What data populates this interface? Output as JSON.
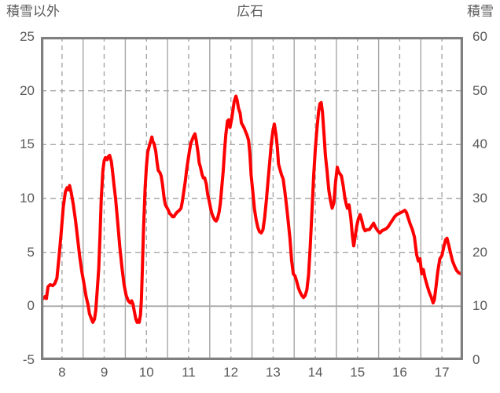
{
  "header": {
    "left_axis_title": "積雪以外",
    "chart_title": "広石",
    "right_axis_title": "積雪"
  },
  "colors": {
    "series_red": "#FF0000",
    "plot_border": "#808080",
    "gridline": "#A6A6A6",
    "text": "#595959",
    "background": "#FFFFFF"
  },
  "chart_data": {
    "type": "line",
    "title": "広石",
    "legend": "none",
    "left_axis": {
      "label": "積雪以外",
      "min": -5,
      "max": 25,
      "ticks": [
        25,
        20,
        15,
        10,
        5,
        0,
        -5
      ]
    },
    "right_axis": {
      "label": "積雪",
      "min": 0,
      "max": 60,
      "ticks": [
        60,
        50,
        40,
        30,
        20,
        10,
        0
      ]
    },
    "x_axis": {
      "min": 7.5,
      "max": 17.5,
      "tick_labels": [
        8,
        9,
        10,
        11,
        12,
        13,
        14,
        15,
        16,
        17
      ]
    },
    "gridlines": {
      "vertical_dashed_at": [
        8,
        9,
        10,
        11,
        12,
        13,
        14,
        15,
        16,
        17
      ],
      "vertical_solid_at": [
        8.5,
        9.5,
        10.5,
        11.5,
        12.5,
        13.5,
        14.5,
        15.5,
        16.5
      ],
      "horizontal_dashed_at_left_values": [
        20,
        15,
        10,
        5
      ],
      "horizontal_solid_at_left_values": [
        0
      ]
    },
    "series": [
      {
        "axis": "left",
        "color": "#FF0000",
        "points": [
          [
            7.5,
            1.0
          ],
          [
            7.55,
            0.7
          ],
          [
            7.6,
            0.9
          ],
          [
            7.63,
            0.7
          ],
          [
            7.67,
            1.8
          ],
          [
            7.72,
            2.0
          ],
          [
            7.78,
            1.9
          ],
          [
            7.83,
            2.1
          ],
          [
            7.88,
            2.6
          ],
          [
            7.93,
            4.6
          ],
          [
            7.98,
            6.8
          ],
          [
            8.03,
            9.2
          ],
          [
            8.08,
            10.6
          ],
          [
            8.12,
            11.0
          ],
          [
            8.15,
            10.8
          ],
          [
            8.18,
            11.2
          ],
          [
            8.22,
            10.5
          ],
          [
            8.27,
            9.4
          ],
          [
            8.32,
            8.0
          ],
          [
            8.37,
            6.3
          ],
          [
            8.42,
            4.6
          ],
          [
            8.47,
            3.2
          ],
          [
            8.52,
            2.1
          ],
          [
            8.57,
            0.9
          ],
          [
            8.62,
            0.1
          ],
          [
            8.65,
            -0.7
          ],
          [
            8.7,
            -1.2
          ],
          [
            8.73,
            -1.5
          ],
          [
            8.77,
            -1.2
          ],
          [
            8.8,
            -0.4
          ],
          [
            8.83,
            1.2
          ],
          [
            8.87,
            3.5
          ],
          [
            8.9,
            6.5
          ],
          [
            8.93,
            10.0
          ],
          [
            8.97,
            12.6
          ],
          [
            9.0,
            13.5
          ],
          [
            9.03,
            13.8
          ],
          [
            9.07,
            13.6
          ],
          [
            9.1,
            13.9
          ],
          [
            9.13,
            14.0
          ],
          [
            9.17,
            13.4
          ],
          [
            9.2,
            12.4
          ],
          [
            9.23,
            11.3
          ],
          [
            9.27,
            10.0
          ],
          [
            9.32,
            7.8
          ],
          [
            9.37,
            5.5
          ],
          [
            9.42,
            3.6
          ],
          [
            9.47,
            2.0
          ],
          [
            9.52,
            1.0
          ],
          [
            9.57,
            0.5
          ],
          [
            9.62,
            0.3
          ],
          [
            9.65,
            0.5
          ],
          [
            9.68,
            0.2
          ],
          [
            9.72,
            -0.6
          ],
          [
            9.75,
            -1.2
          ],
          [
            9.78,
            -1.5
          ],
          [
            9.8,
            -1.3
          ],
          [
            9.83,
            -1.5
          ],
          [
            9.86,
            -0.8
          ],
          [
            9.88,
            0.5
          ],
          [
            9.9,
            3.0
          ],
          [
            9.93,
            7.0
          ],
          [
            9.97,
            11.0
          ],
          [
            10.0,
            13.0
          ],
          [
            10.03,
            14.3
          ],
          [
            10.07,
            14.9
          ],
          [
            10.1,
            15.3
          ],
          [
            10.13,
            15.7
          ],
          [
            10.15,
            15.3
          ],
          [
            10.18,
            15.1
          ],
          [
            10.22,
            14.4
          ],
          [
            10.25,
            13.4
          ],
          [
            10.28,
            12.6
          ],
          [
            10.32,
            12.4
          ],
          [
            10.35,
            12.1
          ],
          [
            10.38,
            11.3
          ],
          [
            10.42,
            10.0
          ],
          [
            10.45,
            9.4
          ],
          [
            10.48,
            9.2
          ],
          [
            10.52,
            8.9
          ],
          [
            10.55,
            8.6
          ],
          [
            10.58,
            8.5
          ],
          [
            10.62,
            8.3
          ],
          [
            10.65,
            8.3
          ],
          [
            10.68,
            8.5
          ],
          [
            10.72,
            8.7
          ],
          [
            10.75,
            8.8
          ],
          [
            10.78,
            8.9
          ],
          [
            10.82,
            9.1
          ],
          [
            10.85,
            9.7
          ],
          [
            10.88,
            10.5
          ],
          [
            10.92,
            11.6
          ],
          [
            10.95,
            12.6
          ],
          [
            10.98,
            13.4
          ],
          [
            11.02,
            14.4
          ],
          [
            11.05,
            15.1
          ],
          [
            11.08,
            15.4
          ],
          [
            11.12,
            15.8
          ],
          [
            11.15,
            16.0
          ],
          [
            11.18,
            15.4
          ],
          [
            11.22,
            14.3
          ],
          [
            11.25,
            13.3
          ],
          [
            11.28,
            12.9
          ],
          [
            11.32,
            12.2
          ],
          [
            11.35,
            11.9
          ],
          [
            11.38,
            11.9
          ],
          [
            11.42,
            11.3
          ],
          [
            11.45,
            10.4
          ],
          [
            11.48,
            9.9
          ],
          [
            11.52,
            9.1
          ],
          [
            11.55,
            8.6
          ],
          [
            11.58,
            8.3
          ],
          [
            11.62,
            8.0
          ],
          [
            11.65,
            7.9
          ],
          [
            11.68,
            8.1
          ],
          [
            11.72,
            8.7
          ],
          [
            11.75,
            9.5
          ],
          [
            11.78,
            10.8
          ],
          [
            11.82,
            12.6
          ],
          [
            11.85,
            14.4
          ],
          [
            11.88,
            15.9
          ],
          [
            11.92,
            17.2
          ],
          [
            11.95,
            17.3
          ],
          [
            11.98,
            16.6
          ],
          [
            12.02,
            17.4
          ],
          [
            12.05,
            18.2
          ],
          [
            12.08,
            19.0
          ],
          [
            12.12,
            19.5
          ],
          [
            12.15,
            19.1
          ],
          [
            12.18,
            18.4
          ],
          [
            12.22,
            17.9
          ],
          [
            12.25,
            17.0
          ],
          [
            12.28,
            16.8
          ],
          [
            12.32,
            16.5
          ],
          [
            12.35,
            16.2
          ],
          [
            12.38,
            15.9
          ],
          [
            12.42,
            15.4
          ],
          [
            12.45,
            14.2
          ],
          [
            12.48,
            12.2
          ],
          [
            12.52,
            10.6
          ],
          [
            12.56,
            9.0
          ],
          [
            12.6,
            8.0
          ],
          [
            12.64,
            7.3
          ],
          [
            12.68,
            6.9
          ],
          [
            12.72,
            6.8
          ],
          [
            12.76,
            7.1
          ],
          [
            12.8,
            8.2
          ],
          [
            12.84,
            9.8
          ],
          [
            12.88,
            11.6
          ],
          [
            12.92,
            13.4
          ],
          [
            12.96,
            15.2
          ],
          [
            13.0,
            16.4
          ],
          [
            13.03,
            16.9
          ],
          [
            13.07,
            15.9
          ],
          [
            13.1,
            14.8
          ],
          [
            13.13,
            13.2
          ],
          [
            13.17,
            12.6
          ],
          [
            13.2,
            12.2
          ],
          [
            13.24,
            11.8
          ],
          [
            13.28,
            10.6
          ],
          [
            13.32,
            9.3
          ],
          [
            13.36,
            7.8
          ],
          [
            13.4,
            6.3
          ],
          [
            13.44,
            4.2
          ],
          [
            13.48,
            3.0
          ],
          [
            13.52,
            2.8
          ],
          [
            13.56,
            2.3
          ],
          [
            13.6,
            1.7
          ],
          [
            13.64,
            1.3
          ],
          [
            13.68,
            1.0
          ],
          [
            13.72,
            0.8
          ],
          [
            13.76,
            1.0
          ],
          [
            13.8,
            1.5
          ],
          [
            13.84,
            2.9
          ],
          [
            13.88,
            5.5
          ],
          [
            13.92,
            8.8
          ],
          [
            13.96,
            12.0
          ],
          [
            14.0,
            14.6
          ],
          [
            14.04,
            16.5
          ],
          [
            14.08,
            18.1
          ],
          [
            14.11,
            18.8
          ],
          [
            14.14,
            18.9
          ],
          [
            14.17,
            18.0
          ],
          [
            14.21,
            15.8
          ],
          [
            14.24,
            14.0
          ],
          [
            14.28,
            12.5
          ],
          [
            14.32,
            10.8
          ],
          [
            14.36,
            9.8
          ],
          [
            14.4,
            9.1
          ],
          [
            14.44,
            9.6
          ],
          [
            14.48,
            11.5
          ],
          [
            14.52,
            12.9
          ],
          [
            14.55,
            12.5
          ],
          [
            14.58,
            12.3
          ],
          [
            14.62,
            12.1
          ],
          [
            14.66,
            11.2
          ],
          [
            14.7,
            10.1
          ],
          [
            14.73,
            9.5
          ],
          [
            14.76,
            9.1
          ],
          [
            14.8,
            9.4
          ],
          [
            14.84,
            8.2
          ],
          [
            14.88,
            6.5
          ],
          [
            14.91,
            5.6
          ],
          [
            14.94,
            6.3
          ],
          [
            14.98,
            7.4
          ],
          [
            15.02,
            8.1
          ],
          [
            15.06,
            8.5
          ],
          [
            15.1,
            8.0
          ],
          [
            15.14,
            7.3
          ],
          [
            15.18,
            7.0
          ],
          [
            15.23,
            7.1
          ],
          [
            15.28,
            7.1
          ],
          [
            15.33,
            7.4
          ],
          [
            15.38,
            7.7
          ],
          [
            15.43,
            7.3
          ],
          [
            15.48,
            7.0
          ],
          [
            15.53,
            6.8
          ],
          [
            15.58,
            7.0
          ],
          [
            15.63,
            7.1
          ],
          [
            15.68,
            7.2
          ],
          [
            15.73,
            7.4
          ],
          [
            15.78,
            7.7
          ],
          [
            15.83,
            8.0
          ],
          [
            15.88,
            8.3
          ],
          [
            15.93,
            8.5
          ],
          [
            15.98,
            8.6
          ],
          [
            16.03,
            8.7
          ],
          [
            16.08,
            8.8
          ],
          [
            16.12,
            8.9
          ],
          [
            16.16,
            8.7
          ],
          [
            16.2,
            8.2
          ],
          [
            16.25,
            7.6
          ],
          [
            16.3,
            7.1
          ],
          [
            16.35,
            6.4
          ],
          [
            16.4,
            4.8
          ],
          [
            16.44,
            4.2
          ],
          [
            16.48,
            4.4
          ],
          [
            16.52,
            3.0
          ],
          [
            16.56,
            3.4
          ],
          [
            16.6,
            2.6
          ],
          [
            16.65,
            1.9
          ],
          [
            16.7,
            1.3
          ],
          [
            16.75,
            0.8
          ],
          [
            16.79,
            0.3
          ],
          [
            16.82,
            0.6
          ],
          [
            16.86,
            1.8
          ],
          [
            16.9,
            3.2
          ],
          [
            16.95,
            4.4
          ],
          [
            17.0,
            4.7
          ],
          [
            17.05,
            5.6
          ],
          [
            17.09,
            6.2
          ],
          [
            17.12,
            6.3
          ],
          [
            17.16,
            5.7
          ],
          [
            17.2,
            5.0
          ],
          [
            17.25,
            4.2
          ],
          [
            17.3,
            3.7
          ],
          [
            17.35,
            3.3
          ],
          [
            17.4,
            3.1
          ],
          [
            17.45,
            3.0
          ],
          [
            17.5,
            3.2
          ]
        ]
      }
    ]
  }
}
